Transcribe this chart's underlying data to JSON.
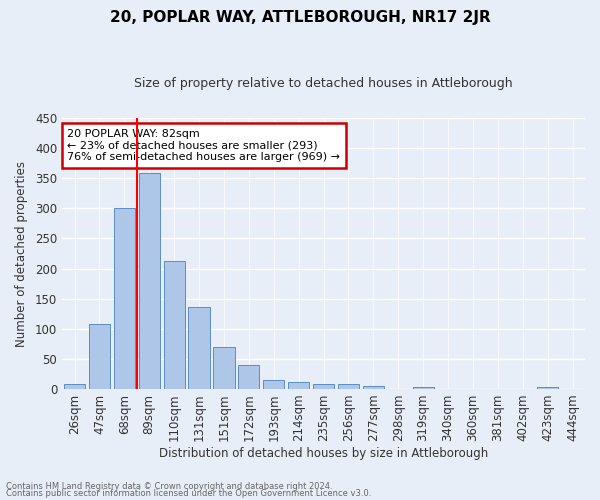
{
  "title": "20, POPLAR WAY, ATTLEBOROUGH, NR17 2JR",
  "subtitle": "Size of property relative to detached houses in Attleborough",
  "xlabel": "Distribution of detached houses by size in Attleborough",
  "ylabel": "Number of detached properties",
  "categories": [
    "26sqm",
    "47sqm",
    "68sqm",
    "89sqm",
    "110sqm",
    "131sqm",
    "151sqm",
    "172sqm",
    "193sqm",
    "214sqm",
    "235sqm",
    "256sqm",
    "277sqm",
    "298sqm",
    "319sqm",
    "340sqm",
    "360sqm",
    "381sqm",
    "402sqm",
    "423sqm",
    "444sqm"
  ],
  "values": [
    8,
    108,
    300,
    358,
    213,
    136,
    70,
    39,
    15,
    11,
    9,
    9,
    5,
    0,
    3,
    0,
    0,
    0,
    0,
    4,
    0
  ],
  "bar_color": "#aec6e8",
  "bar_edge_color": "#5b8ec4",
  "bg_color": "#e8eef7",
  "grid_color": "#ffffff",
  "annotation_text": "20 POPLAR WAY: 82sqm\n← 23% of detached houses are smaller (293)\n76% of semi-detached houses are larger (969) →",
  "annotation_box_color": "#ffffff",
  "annotation_box_edge": "#cc0000",
  "footnote1": "Contains HM Land Registry data © Crown copyright and database right 2024.",
  "footnote2": "Contains public sector information licensed under the Open Government Licence v3.0.",
  "ylim": [
    0,
    450
  ],
  "yticks": [
    0,
    50,
    100,
    150,
    200,
    250,
    300,
    350,
    400,
    450
  ],
  "red_line_x": 2.5
}
